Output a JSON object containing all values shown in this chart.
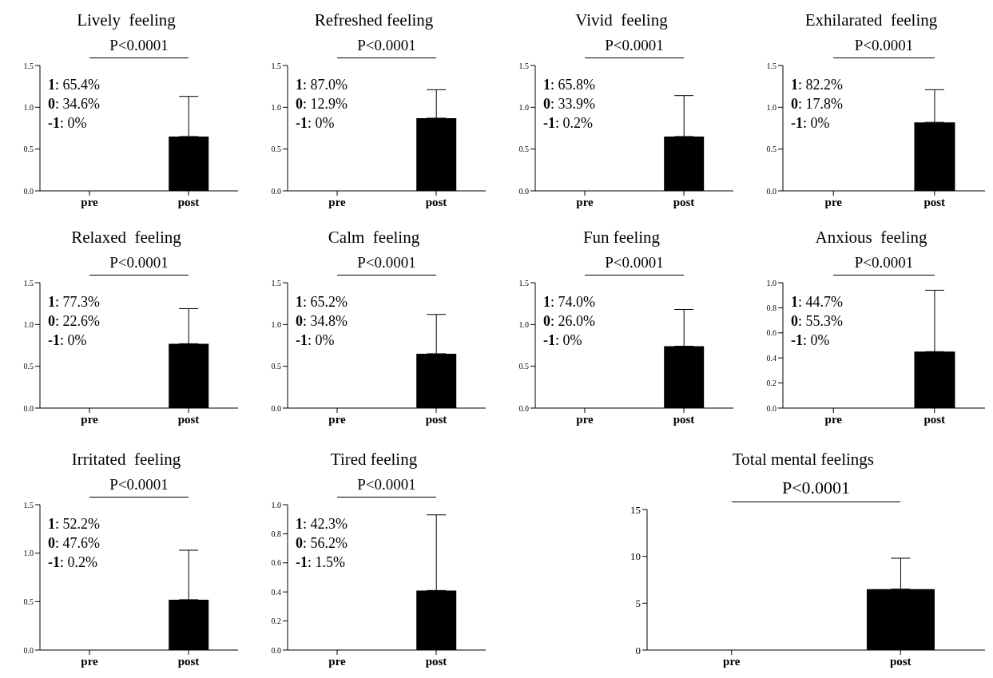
{
  "chart_data": [
    {
      "type": "bar",
      "title": "Lively  feeling",
      "categories": [
        "pre",
        "post"
      ],
      "values": [
        0,
        0.65
      ],
      "errors": [
        null,
        [
          0.65,
          1.13
        ]
      ],
      "color": "#000000",
      "ylim": [
        0,
        1.5
      ],
      "yticks": [
        {
          "value": 0,
          "label": "0.0"
        },
        {
          "value": 0.5,
          "label": "0.5"
        },
        {
          "value": 1,
          "label": "1.0"
        },
        {
          "value": 1.5,
          "label": "1.5"
        }
      ],
      "annotations": [
        "P<0.0001",
        "1: 65.4%",
        "0: 34.6%",
        "-1: 0%"
      ]
    },
    {
      "type": "bar",
      "title": "Refreshed feeling",
      "categories": [
        "pre",
        "post"
      ],
      "values": [
        0,
        0.87
      ],
      "errors": [
        null,
        [
          0.87,
          1.21
        ]
      ],
      "color": "#000000",
      "ylim": [
        0,
        1.5
      ],
      "yticks": [
        {
          "value": 0,
          "label": "0.0"
        },
        {
          "value": 0.5,
          "label": "0.5"
        },
        {
          "value": 1,
          "label": "1.0"
        },
        {
          "value": 1.5,
          "label": "1.5"
        }
      ],
      "annotations": [
        "P<0.0001",
        "1: 87.0%",
        "0: 12.9%",
        "-1: 0%"
      ]
    },
    {
      "type": "bar",
      "title": "Vivid  feeling",
      "categories": [
        "pre",
        "post"
      ],
      "values": [
        0,
        0.65
      ],
      "errors": [
        null,
        [
          0.65,
          1.14
        ]
      ],
      "color": "#000000",
      "ylim": [
        0,
        1.5
      ],
      "yticks": [
        {
          "value": 0,
          "label": "0.0"
        },
        {
          "value": 0.5,
          "label": "0.5"
        },
        {
          "value": 1,
          "label": "1.0"
        },
        {
          "value": 1.5,
          "label": "1.5"
        }
      ],
      "annotations": [
        "P<0.0001",
        "1: 65.8%",
        "0: 33.9%",
        "-1: 0.2%"
      ]
    },
    {
      "type": "bar",
      "title": "Exhilarated  feeling",
      "categories": [
        "pre",
        "post"
      ],
      "values": [
        0,
        0.82
      ],
      "errors": [
        null,
        [
          0.82,
          1.21
        ]
      ],
      "color": "#000000",
      "ylim": [
        0,
        1.5
      ],
      "yticks": [
        {
          "value": 0,
          "label": "0.0"
        },
        {
          "value": 0.5,
          "label": "0.5"
        },
        {
          "value": 1,
          "label": "1.0"
        },
        {
          "value": 1.5,
          "label": "1.5"
        }
      ],
      "annotations": [
        "P<0.0001",
        "1: 82.2%",
        "0: 17.8%",
        "-1: 0%"
      ]
    },
    {
      "type": "bar",
      "title": "Relaxed  feeling",
      "categories": [
        "pre",
        "post"
      ],
      "values": [
        0,
        0.77
      ],
      "errors": [
        null,
        [
          0.77,
          1.19
        ]
      ],
      "color": "#000000",
      "ylim": [
        0,
        1.5
      ],
      "yticks": [
        {
          "value": 0,
          "label": "0.0"
        },
        {
          "value": 0.5,
          "label": "0.5"
        },
        {
          "value": 1,
          "label": "1.0"
        },
        {
          "value": 1.5,
          "label": "1.5"
        }
      ],
      "annotations": [
        "P<0.0001",
        "1: 77.3%",
        "0: 22.6%",
        "-1: 0%"
      ]
    },
    {
      "type": "bar",
      "title": "Calm  feeling",
      "categories": [
        "pre",
        "post"
      ],
      "values": [
        0,
        0.65
      ],
      "errors": [
        null,
        [
          0.65,
          1.12
        ]
      ],
      "color": "#000000",
      "ylim": [
        0,
        1.5
      ],
      "yticks": [
        {
          "value": 0,
          "label": "0.0"
        },
        {
          "value": 0.5,
          "label": "0.5"
        },
        {
          "value": 1,
          "label": "1.0"
        },
        {
          "value": 1.5,
          "label": "1.5"
        }
      ],
      "annotations": [
        "P<0.0001",
        "1: 65.2%",
        "0: 34.8%",
        "-1: 0%"
      ]
    },
    {
      "type": "bar",
      "title": "Fun feeling",
      "categories": [
        "pre",
        "post"
      ],
      "values": [
        0,
        0.74
      ],
      "errors": [
        null,
        [
          0.74,
          1.18
        ]
      ],
      "color": "#000000",
      "ylim": [
        0,
        1.5
      ],
      "yticks": [
        {
          "value": 0,
          "label": "0.0"
        },
        {
          "value": 0.5,
          "label": "0.5"
        },
        {
          "value": 1,
          "label": "1.0"
        },
        {
          "value": 1.5,
          "label": "1.5"
        }
      ],
      "annotations": [
        "P<0.0001",
        "1: 74.0%",
        "0: 26.0%",
        "-1: 0%"
      ]
    },
    {
      "type": "bar",
      "title": "Anxious  feeling",
      "categories": [
        "pre",
        "post"
      ],
      "values": [
        0,
        0.45
      ],
      "errors": [
        null,
        [
          0.45,
          0.94
        ]
      ],
      "color": "#000000",
      "ylim": [
        0,
        1.0
      ],
      "yticks": [
        {
          "value": 0,
          "label": "0.0"
        },
        {
          "value": 0.2,
          "label": "0.2"
        },
        {
          "value": 0.4,
          "label": "0.4"
        },
        {
          "value": 0.6,
          "label": "0.6"
        },
        {
          "value": 0.8,
          "label": "0.8"
        },
        {
          "value": 1,
          "label": "1.0"
        }
      ],
      "annotations": [
        "P<0.0001",
        "1: 44.7%",
        "0: 55.3%",
        "-1: 0%"
      ]
    },
    {
      "type": "bar",
      "title": "Irritated  feeling",
      "categories": [
        "pre",
        "post"
      ],
      "values": [
        0,
        0.52
      ],
      "errors": [
        null,
        [
          0.52,
          1.03
        ]
      ],
      "color": "#000000",
      "ylim": [
        0,
        1.5
      ],
      "yticks": [
        {
          "value": 0,
          "label": "0.0"
        },
        {
          "value": 0.5,
          "label": "0.5"
        },
        {
          "value": 1,
          "label": "1.0"
        },
        {
          "value": 1.5,
          "label": "1.5"
        }
      ],
      "annotations": [
        "P<0.0001",
        "1: 52.2%",
        "0: 47.6%",
        "-1: 0.2%"
      ]
    },
    {
      "type": "bar",
      "title": "Tired feeling",
      "categories": [
        "pre",
        "post"
      ],
      "values": [
        0,
        0.41
      ],
      "errors": [
        null,
        [
          0.41,
          0.93
        ]
      ],
      "color": "#000000",
      "ylim": [
        0,
        1.0
      ],
      "yticks": [
        {
          "value": 0,
          "label": "0.0"
        },
        {
          "value": 0.2,
          "label": "0.2"
        },
        {
          "value": 0.4,
          "label": "0.4"
        },
        {
          "value": 0.6,
          "label": "0.6"
        },
        {
          "value": 0.8,
          "label": "0.8"
        },
        {
          "value": 1,
          "label": "1.0"
        }
      ],
      "annotations": [
        "P<0.0001",
        "1: 42.3%",
        "0: 56.2%",
        "-1: 1.5%"
      ]
    },
    {
      "type": "bar",
      "title": "Total mental feelings",
      "categories": [
        "pre",
        "post"
      ],
      "values": [
        0,
        6.5
      ],
      "errors": [
        null,
        [
          6.5,
          9.8
        ]
      ],
      "color": "#000000",
      "ylim": [
        0,
        15
      ],
      "yticks": [
        0,
        5,
        10,
        15
      ],
      "annotations": [
        "P<0.0001"
      ]
    }
  ]
}
